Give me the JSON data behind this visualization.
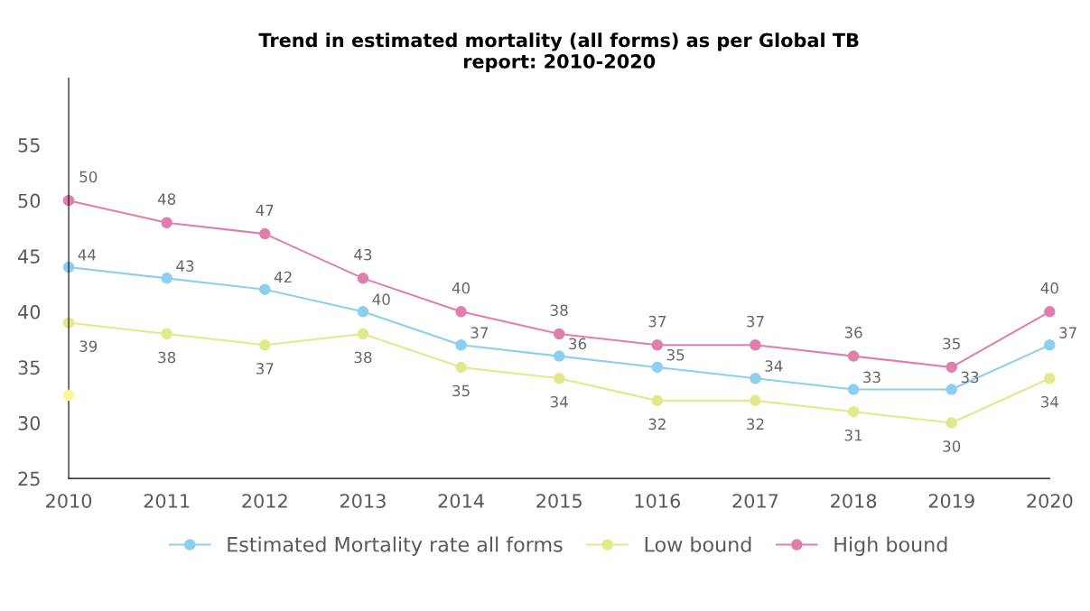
{
  "chart_data": {
    "type": "line",
    "title": "Trend in estimated mortality (all forms) as per Global TB\nreport: 2010-2020",
    "categories": [
      "2010",
      "2011",
      "2012",
      "2013",
      "2014",
      "2015",
      "1016",
      "2017",
      "2018",
      "2019",
      "2020"
    ],
    "series": [
      {
        "name": "Estimated Mortality rate all forms",
        "color": "#8ccfee",
        "values": [
          44,
          43,
          42,
          40,
          37,
          36,
          35,
          34,
          33,
          33,
          37
        ]
      },
      {
        "name": "Low bound",
        "color": "#e3e98a",
        "values": [
          39,
          38,
          37,
          38,
          35,
          34,
          32,
          32,
          31,
          30,
          34
        ]
      },
      {
        "name": "High bound",
        "color": "#e07fae",
        "values": [
          50,
          48,
          47,
          43,
          40,
          38,
          37,
          37,
          36,
          35,
          40
        ]
      },
      {
        "type": "scatter",
        "color": "#fdf59a",
        "values": [
          32.5,
          null,
          null,
          null,
          null,
          null,
          null,
          null,
          null,
          null,
          null
        ],
        "value_labels": [
          null,
          null,
          null,
          null,
          null,
          null,
          null,
          null,
          null,
          null,
          null
        ]
      }
    ],
    "ylim": [
      25,
      61
    ],
    "yticks": [
      25,
      30,
      35,
      40,
      45,
      50,
      55
    ],
    "data_labels": true,
    "marker": "circle",
    "line_style": "solid",
    "grid": false,
    "legend": "bottom"
  }
}
